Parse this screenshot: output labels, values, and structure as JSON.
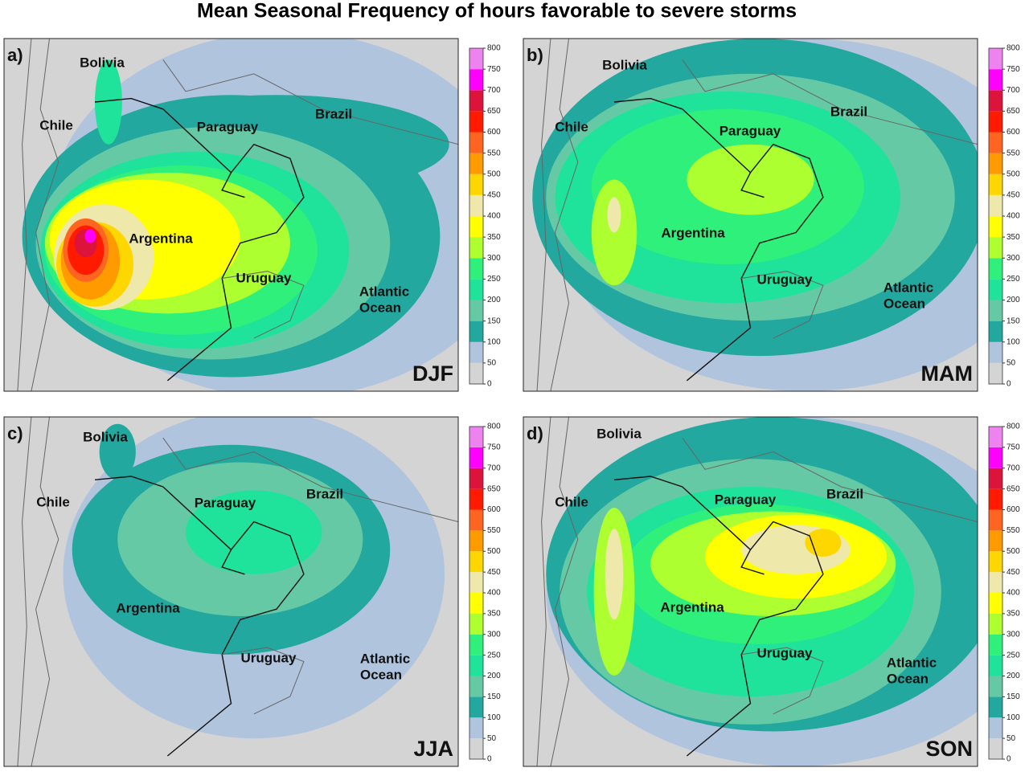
{
  "title": "Mean Seasonal Frequency of hours favorable to severe storms",
  "colorbar": {
    "lim": [
      0,
      800
    ],
    "ticks": [
      0,
      50,
      100,
      150,
      200,
      250,
      300,
      350,
      400,
      450,
      500,
      550,
      600,
      650,
      700,
      750,
      800
    ],
    "colors": [
      "#d4d4d4",
      "#b0c4de",
      "#22a89e",
      "#66c9a6",
      "#1fe39b",
      "#2ef07a",
      "#adff2f",
      "#ffff00",
      "#eee8aa",
      "#ffd700",
      "#ff9a00",
      "#ff6420",
      "#ff1a00",
      "#dc143c",
      "#ff00ff",
      "#ee82ee"
    ]
  },
  "panels": [
    {
      "letter": "a)",
      "season": "DJF",
      "places": [
        "Bolivia",
        "Chile",
        "Paraguay",
        "Brazil",
        "Argentina",
        "Uruguay",
        "Atlantic",
        "Ocean"
      ]
    },
    {
      "letter": "b)",
      "season": "MAM",
      "places": [
        "Bolivia",
        "Chile",
        "Paraguay",
        "Brazil",
        "Argentina",
        "Uruguay",
        "Atlantic",
        "Ocean"
      ]
    },
    {
      "letter": "c)",
      "season": "JJA",
      "places": [
        "Bolivia",
        "Chile",
        "Paraguay",
        "Brazil",
        "Argentina",
        "Uruguay",
        "Atlantic",
        "Ocean"
      ]
    },
    {
      "letter": "d)",
      "season": "SON",
      "places": [
        "Bolivia",
        "Chile",
        "Paraguay",
        "Brazil",
        "Argentina",
        "Uruguay",
        "Atlantic",
        "Ocean"
      ]
    }
  ]
}
